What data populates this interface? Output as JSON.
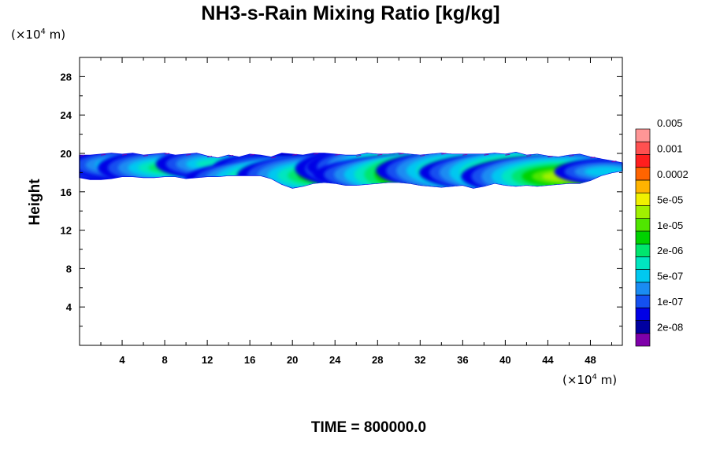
{
  "chart_data": {
    "type": "heatmap",
    "title": "NH3-s-Rain Mixing Ratio [kg/kg]",
    "ylabel": "Height",
    "xlabel": "",
    "x_unit": {
      "prefix": "(×10",
      "exp": "4",
      "suffix": " m)"
    },
    "y_unit": {
      "prefix": "(×10",
      "exp": "4",
      "suffix": " m)"
    },
    "time_label": "TIME = 800000.0",
    "xlim": [
      0,
      51
    ],
    "ylim": [
      0,
      30
    ],
    "x_ticks": [
      4,
      8,
      12,
      16,
      20,
      24,
      28,
      32,
      36,
      40,
      44,
      48
    ],
    "y_ticks": [
      4,
      8,
      12,
      16,
      20,
      24,
      28
    ],
    "colorbar": {
      "colors": [
        "#7f00aa",
        "#0000a0",
        "#0000e6",
        "#1450f0",
        "#1a8cf2",
        "#00c8f0",
        "#00e6c0",
        "#00e66e",
        "#00d200",
        "#50e600",
        "#a0f000",
        "#f0f000",
        "#ffb400",
        "#ff6400",
        "#ff1e1e",
        "#ff5050",
        "#ff9696"
      ],
      "labels": [
        "2e-08",
        "1e-07",
        "5e-07",
        "2e-06",
        "1e-05",
        "5e-05",
        "0.0002",
        "0.001",
        "0.005"
      ]
    },
    "field": {
      "band_x": [
        0,
        51
      ],
      "band_top_km": [
        19.8,
        19.8,
        19.9,
        20.0,
        19.9,
        20.0,
        19.8,
        19.9,
        20.0,
        19.8,
        19.9,
        20.0,
        19.7,
        19.5,
        19.8,
        19.6,
        19.9,
        19.8,
        19.6,
        20.0,
        19.9,
        19.8,
        20.0,
        20.0,
        19.9,
        19.8,
        19.8,
        20.0,
        19.9,
        19.9,
        20.0,
        19.9,
        19.8,
        19.9,
        20.0,
        19.9,
        19.9,
        19.9,
        19.9,
        20.0,
        19.9,
        20.1,
        19.8,
        19.9,
        19.7,
        19.6,
        19.8,
        19.9,
        19.6,
        19.4,
        19.2,
        19.0
      ],
      "band_bottom_km": [
        17.5,
        17.3,
        17.3,
        17.4,
        17.6,
        17.6,
        17.5,
        17.5,
        17.6,
        17.6,
        17.4,
        17.5,
        17.6,
        17.6,
        17.7,
        17.7,
        17.7,
        17.7,
        17.4,
        16.8,
        16.4,
        16.6,
        16.9,
        17.0,
        16.9,
        16.7,
        16.7,
        16.8,
        16.9,
        17.0,
        17.0,
        16.9,
        16.7,
        16.6,
        16.5,
        16.6,
        16.7,
        16.4,
        16.6,
        16.9,
        16.7,
        16.6,
        16.7,
        16.6,
        16.7,
        16.8,
        16.9,
        16.9,
        17.2,
        17.7,
        18.0,
        18.2
      ],
      "peaks": [
        {
          "x": 1.5,
          "y": 18.6,
          "level": 5
        },
        {
          "x": 4.5,
          "y": 18.8,
          "level": 6
        },
        {
          "x": 8.5,
          "y": 18.5,
          "level": 7
        },
        {
          "x": 13.0,
          "y": 18.9,
          "level": 6
        },
        {
          "x": 17.5,
          "y": 18.6,
          "level": 5
        },
        {
          "x": 20.5,
          "y": 17.3,
          "level": 11
        },
        {
          "x": 23.5,
          "y": 17.7,
          "level": 9
        },
        {
          "x": 28.0,
          "y": 18.4,
          "level": 8
        },
        {
          "x": 31.0,
          "y": 18.6,
          "level": 10
        },
        {
          "x": 34.5,
          "y": 17.8,
          "level": 13
        },
        {
          "x": 37.5,
          "y": 18.2,
          "level": 10
        },
        {
          "x": 42.5,
          "y": 18.0,
          "level": 11
        },
        {
          "x": 45.5,
          "y": 17.6,
          "level": 10
        },
        {
          "x": 49.5,
          "y": 18.1,
          "level": 5
        }
      ]
    }
  }
}
